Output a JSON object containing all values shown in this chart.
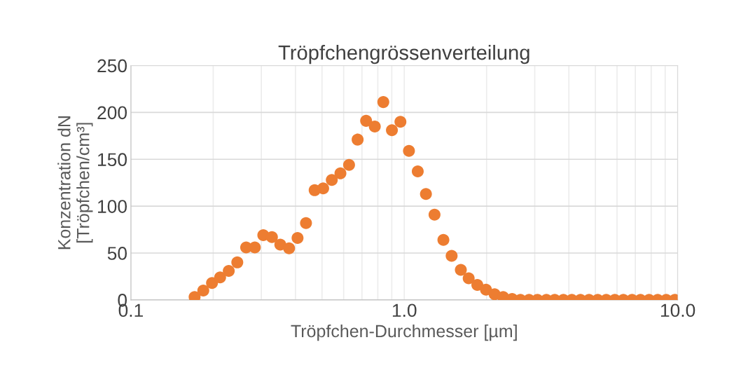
{
  "chart_data": {
    "type": "scatter",
    "title": "Tröpfchengrössenverteilung",
    "xlabel": "Tröpfchen-Durchmesser [µm]",
    "ylabel": "Konzentration dN\n[Tröpfchen/cm³]",
    "x": [
      0.171,
      0.184,
      0.198,
      0.212,
      0.228,
      0.245,
      0.264,
      0.284,
      0.305,
      0.328,
      0.352,
      0.379,
      0.407,
      0.437,
      0.47,
      0.505,
      0.543,
      0.584,
      0.628,
      0.675,
      0.725,
      0.78,
      0.838,
      0.901,
      0.968,
      1.04,
      1.12,
      1.2,
      1.29,
      1.39,
      1.49,
      1.61,
      1.72,
      1.85,
      1.99,
      2.14,
      2.3,
      2.48,
      2.66,
      2.86,
      3.07,
      3.31,
      3.55,
      3.82,
      4.1,
      4.41,
      4.74,
      5.1,
      5.48,
      5.89,
      6.33,
      6.81,
      7.31,
      7.86,
      8.45,
      9.08,
      9.76
    ],
    "series": [
      {
        "color": "#ed7d31",
        "values": [
          3,
          10,
          18,
          24,
          31,
          40,
          56,
          56,
          69,
          67,
          59,
          55,
          66,
          82,
          117,
          119,
          128,
          135,
          144,
          171,
          191,
          185,
          211,
          181,
          190,
          159,
          137,
          113,
          91,
          64,
          47,
          32,
          23,
          16,
          11,
          6,
          3,
          1,
          0,
          0,
          0,
          0,
          0,
          0,
          0,
          0,
          0,
          0,
          0,
          0,
          0,
          0,
          0,
          0,
          0,
          0,
          0
        ]
      }
    ],
    "log": "x",
    "xlim": [
      0.1,
      10
    ],
    "xticks": [
      {
        "value": 0.1,
        "label": "0.1"
      },
      {
        "value": 1,
        "label": "1.0"
      },
      {
        "value": 10,
        "label": "10.0"
      }
    ],
    "ylim": [
      0,
      250
    ],
    "yticks": [
      0,
      50,
      100,
      150,
      200,
      250
    ],
    "grid": true,
    "marker": "circle"
  }
}
